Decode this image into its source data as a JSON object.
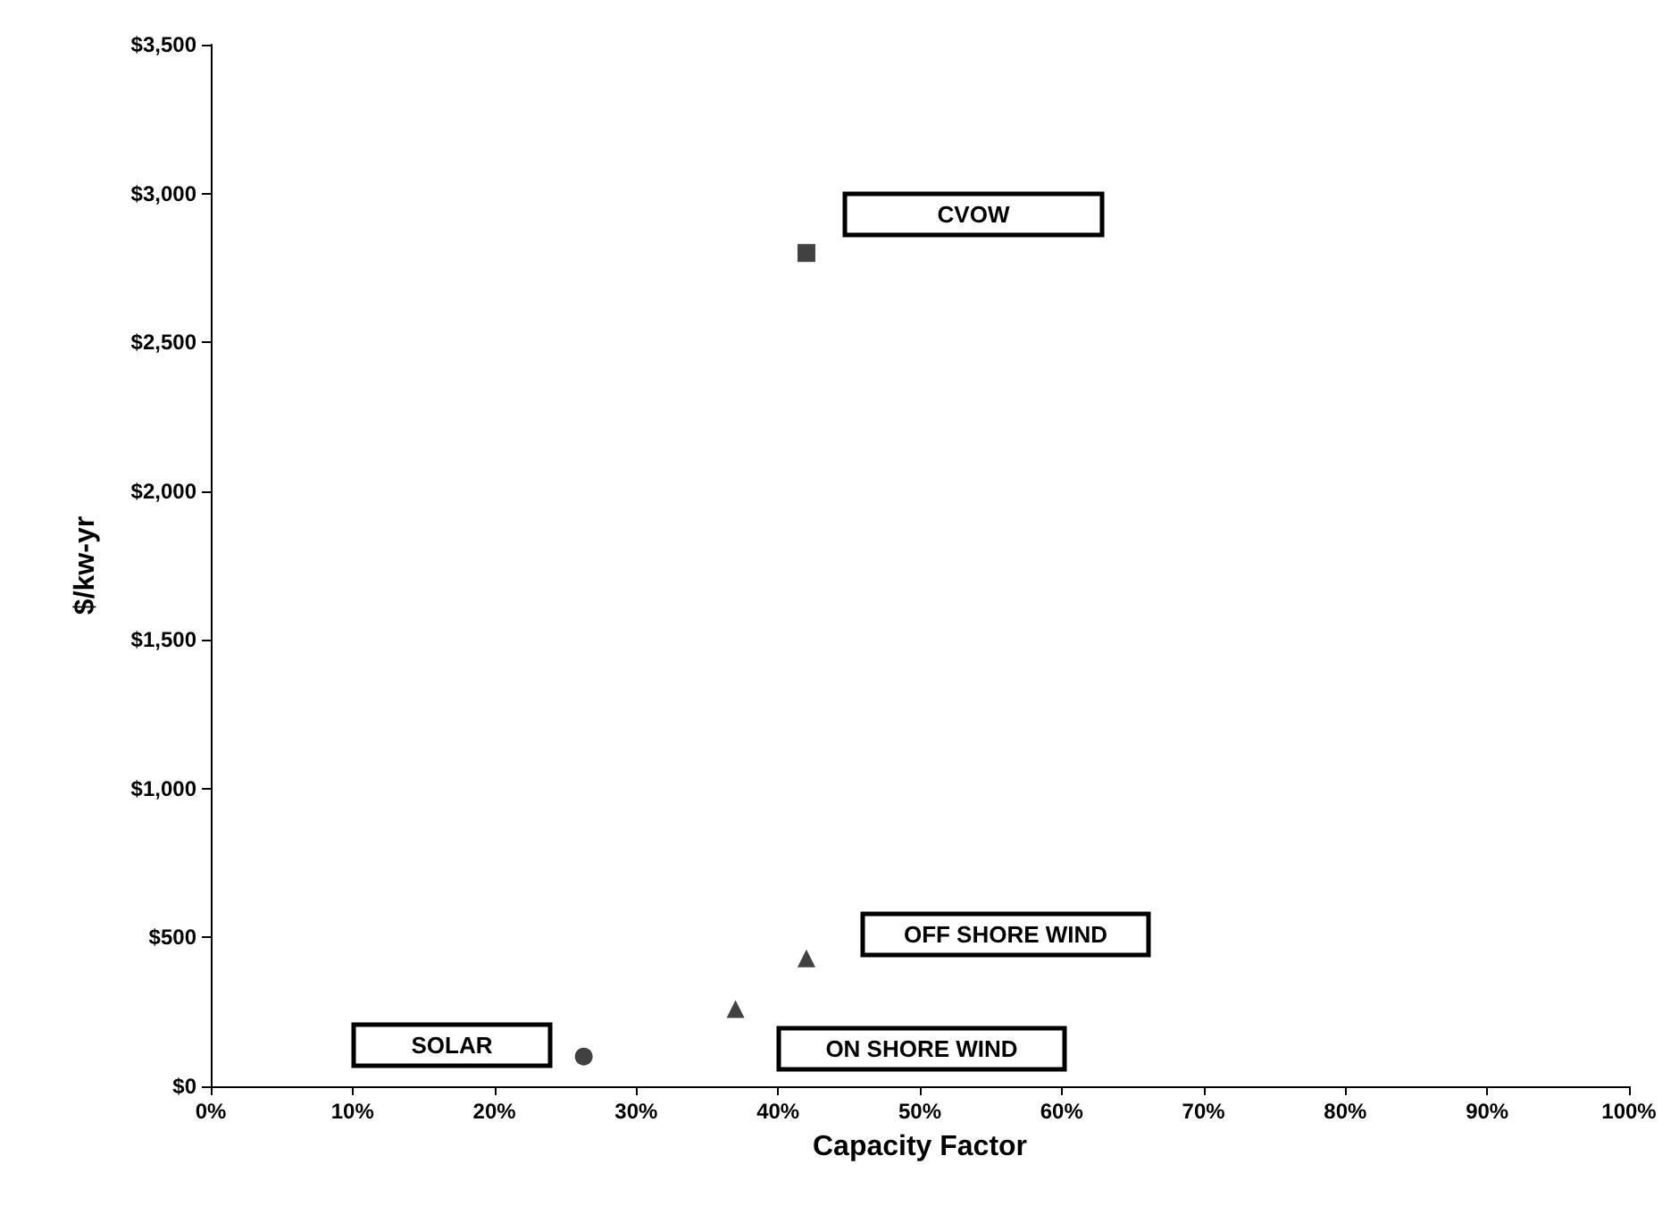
{
  "chart_data": {
    "type": "scatter",
    "xlabel": "Capacity Factor",
    "ylabel": "$/kw-yr",
    "xlim": [
      0,
      100
    ],
    "xticks": [
      {
        "value": 0,
        "label": "0%"
      },
      {
        "value": 10,
        "label": "10%"
      },
      {
        "value": 20,
        "label": "20%"
      },
      {
        "value": 30,
        "label": "30%"
      },
      {
        "value": 40,
        "label": "40%"
      },
      {
        "value": 50,
        "label": "50%"
      },
      {
        "value": 60,
        "label": "60%"
      },
      {
        "value": 70,
        "label": "70%"
      },
      {
        "value": 80,
        "label": "80%"
      },
      {
        "value": 90,
        "label": "90%"
      },
      {
        "value": 100,
        "label": "100%"
      }
    ],
    "ylim": [
      0,
      3500
    ],
    "yticks": [
      {
        "value": 0,
        "label": "$0"
      },
      {
        "value": 500,
        "label": "$500"
      },
      {
        "value": 1000,
        "label": "$1,000"
      },
      {
        "value": 1500,
        "label": "$1,500"
      },
      {
        "value": 2000,
        "label": "$2,000"
      },
      {
        "value": 2500,
        "label": "$2,500"
      },
      {
        "value": 3000,
        "label": "$3,000"
      },
      {
        "value": 3500,
        "label": "$3,500"
      }
    ],
    "grid": false,
    "series": [
      {
        "color": "#111111",
        "marker": "square",
        "x": [
          42
        ],
        "values": [
          2800
        ]
      },
      {
        "color": "#111111",
        "marker": "triangle",
        "x": [
          42,
          37
        ],
        "values": [
          430,
          260
        ]
      },
      {
        "color": "#111111",
        "marker": "circle",
        "x": [
          26.3
        ],
        "values": [
          100
        ]
      }
    ],
    "annotations": [
      "CVOW",
      "OFF SHORE WIND",
      "ON SHORE WIND",
      "SOLAR"
    ]
  }
}
